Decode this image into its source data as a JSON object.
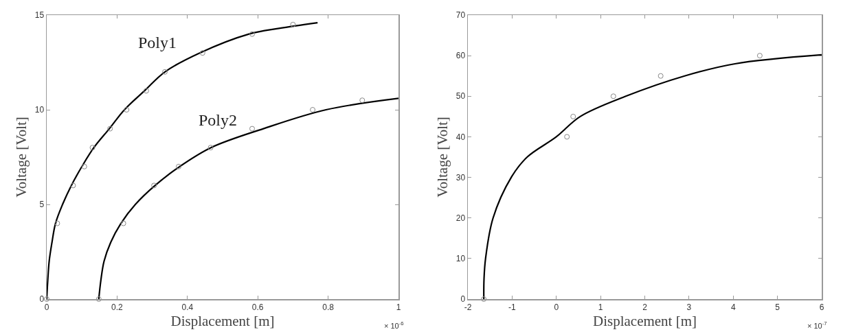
{
  "chart_data": [
    {
      "type": "line",
      "xlabel": "Displacement [m]",
      "ylabel": "Voltage [Volt]",
      "xlim": [
        0,
        1
      ],
      "xticks": [
        0,
        0.2,
        0.4,
        0.6,
        0.8,
        1
      ],
      "ylim": [
        0,
        15
      ],
      "yticks": [
        0,
        5,
        10,
        15
      ],
      "grid": false,
      "legend": false,
      "annotations": [
        "× 10$^{-6}$"
      ],
      "series": [
        {
          "name": "Poly1",
          "color": "#000000",
          "x": [
            0,
            0.003,
            0.007,
            0.015,
            0.025,
            0.045,
            0.07,
            0.1,
            0.134,
            0.178,
            0.221,
            0.278,
            0.336,
            0.435,
            0.575,
            0.66,
            0.77
          ],
          "values": [
            0,
            1,
            2,
            3,
            4,
            5,
            6,
            7,
            8,
            9,
            10,
            11,
            12,
            13,
            14,
            14.3,
            14.6
          ]
        },
        {
          "type": "scatter",
          "color": "#888888",
          "x": [
            0,
            0.03,
            0.075,
            0.107,
            0.13,
            0.18,
            0.227,
            0.283,
            0.336,
            0.443,
            0.584,
            0.7
          ],
          "values": [
            0,
            4,
            6,
            7,
            8,
            9,
            10,
            11,
            12,
            13,
            14,
            14.5
          ]
        },
        {
          "name": "Poly2",
          "color": "#000000",
          "x": [
            0.148,
            0.154,
            0.163,
            0.182,
            0.211,
            0.252,
            0.308,
            0.378,
            0.467,
            0.616,
            0.794,
            1
          ],
          "values": [
            0,
            1,
            2,
            3,
            4,
            5,
            6,
            7,
            8,
            9,
            10,
            10.6
          ]
        },
        {
          "type": "scatter",
          "color": "#888888",
          "x": [
            0.148,
            0.218,
            0.305,
            0.375,
            0.466,
            0.584,
            0.756,
            0.897
          ],
          "values": [
            0,
            4,
            6,
            7,
            8,
            9,
            10,
            10.5
          ]
        }
      ]
    },
    {
      "type": "line",
      "xlabel": "Displacement [m]",
      "ylabel": "Voltage [Volt]",
      "xlim": [
        -2,
        6
      ],
      "xticks": [
        -2,
        -1,
        0,
        1,
        2,
        3,
        4,
        5,
        6
      ],
      "ylim": [
        0,
        70
      ],
      "yticks": [
        0,
        10,
        20,
        30,
        40,
        50,
        60,
        70
      ],
      "grid": false,
      "legend": false,
      "annotations": [
        "× 10$^{-7}$"
      ],
      "series": [
        {
          "color": "#000000",
          "x": [
            -1.64,
            -1.635,
            -1.6,
            -1.43,
            -1.02,
            -0.66,
            0,
            0.54,
            1.57,
            2.9,
            4.04,
            6
          ],
          "values": [
            0,
            5,
            10,
            20,
            30,
            35,
            40,
            45,
            50,
            55,
            58,
            60.2
          ]
        },
        {
          "type": "scatter",
          "color": "#888888",
          "x": [
            -1.64,
            0.24,
            0.38,
            1.29,
            2.36,
            4.6
          ],
          "values": [
            0,
            40,
            45,
            50,
            55,
            60
          ]
        }
      ]
    }
  ]
}
